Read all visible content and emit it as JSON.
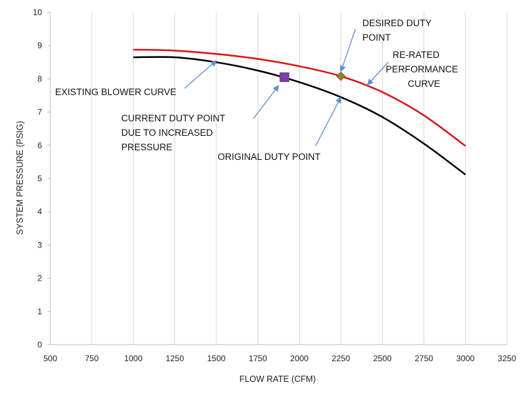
{
  "chart_data": {
    "type": "line",
    "title": "",
    "xlabel": "FLOW RATE (CFM)",
    "ylabel": "SYSTEM PRESSURE (PSIG)",
    "xlim": [
      500,
      3250
    ],
    "ylim": [
      0,
      10
    ],
    "xticks": [
      500,
      750,
      1000,
      1250,
      1500,
      1750,
      2000,
      2250,
      2500,
      2750,
      3000,
      3250
    ],
    "yticks": [
      0,
      1,
      2,
      3,
      4,
      5,
      6,
      7,
      8,
      9,
      10
    ],
    "grid": "vertical",
    "series": [
      {
        "name": "EXISTING BLOWER CURVE",
        "color": "#000000",
        "x": [
          1000,
          1250,
          1500,
          1750,
          2000,
          2250,
          2500,
          2750,
          3000
        ],
        "y": [
          8.65,
          8.65,
          8.5,
          8.25,
          7.9,
          7.45,
          6.85,
          6.05,
          5.12
        ]
      },
      {
        "name": "RE-RATED PERFORMANCE CURVE",
        "color": "#d9141a",
        "x": [
          1000,
          1250,
          1500,
          1750,
          2000,
          2250,
          2500,
          2750,
          3000
        ],
        "y": [
          8.88,
          8.85,
          8.75,
          8.6,
          8.38,
          8.08,
          7.6,
          6.9,
          5.98
        ]
      }
    ],
    "points": [
      {
        "name": "current-duty-point-marker",
        "x": 1910,
        "y": 8.05,
        "marker": "square",
        "color": "#7b3fa0"
      },
      {
        "name": "desired-duty-point-marker",
        "x": 2250,
        "y": 8.08,
        "marker": "diamond",
        "color": "#6a9a2e"
      }
    ],
    "annotations": [
      {
        "name": "existing-blower-curve",
        "lines": [
          "EXISTING BLOWER CURVE"
        ],
        "arrow_to": [
          1500,
          8.55
        ]
      },
      {
        "name": "current-duty-point",
        "lines": [
          "CURRENT DUTY POINT",
          "DUE TO INCREASED",
          "PRESSURE"
        ],
        "arrow_to": [
          1875,
          7.8
        ]
      },
      {
        "name": "original-duty-point",
        "lines": [
          "ORIGINAL DUTY POINT"
        ],
        "arrow_to": [
          2250,
          7.45
        ]
      },
      {
        "name": "desired-duty-point",
        "lines": [
          "DESIRED DUTY",
          "POINT"
        ],
        "arrow_to": [
          2250,
          8.22
        ]
      },
      {
        "name": "re-rated-curve",
        "lines": [
          "RE-RATED",
          "PERFORMANCE",
          "CURVE"
        ],
        "arrow_to": [
          2410,
          7.82
        ]
      }
    ],
    "colors": {
      "axis": "#bfbfbf",
      "grid": "#d9d9d9",
      "arrow": "#5b8fd0"
    }
  }
}
